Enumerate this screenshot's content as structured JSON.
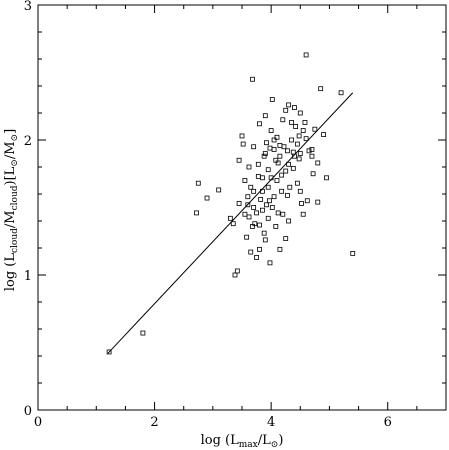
{
  "chart_data": {
    "type": "scatter",
    "title": "",
    "xlabel": {
      "main": "log (L",
      "sub": "max",
      "mid": "/L",
      "odot": "⊙",
      "end": ")"
    },
    "ylabel": {
      "p1": "log (L",
      "s1": "cloud",
      "p2": "/M",
      "s2": "cloud",
      "p3": ")[L",
      "o1": "⊙",
      "p4": "/M",
      "o2": "⊙",
      "p5": "]"
    },
    "xlim": [
      0,
      7
    ],
    "ylim": [
      0,
      3
    ],
    "xticks": [
      {
        "value": 0,
        "label": "0"
      },
      {
        "value": 2,
        "label": "2"
      },
      {
        "value": 4,
        "label": "4"
      },
      {
        "value": 6,
        "label": "6"
      }
    ],
    "yticks": [
      {
        "value": 0,
        "label": "0"
      },
      {
        "value": 1,
        "label": "1"
      },
      {
        "value": 2,
        "label": "2"
      },
      {
        "value": 3,
        "label": "3"
      }
    ],
    "fit_line": {
      "x": [
        1.2,
        5.4
      ],
      "y": [
        0.42,
        2.35
      ]
    },
    "points": [
      [
        1.22,
        0.43
      ],
      [
        1.8,
        0.57
      ],
      [
        2.75,
        1.68
      ],
      [
        2.72,
        1.46
      ],
      [
        2.9,
        1.57
      ],
      [
        3.1,
        1.63
      ],
      [
        3.3,
        1.42
      ],
      [
        3.35,
        1.38
      ],
      [
        3.45,
        1.85
      ],
      [
        3.5,
        2.03
      ],
      [
        3.52,
        1.97
      ],
      [
        3.55,
        1.45
      ],
      [
        3.6,
        1.52
      ],
      [
        3.62,
        1.43
      ],
      [
        3.65,
        1.17
      ],
      [
        3.68,
        2.45
      ],
      [
        3.7,
        1.62
      ],
      [
        3.72,
        1.38
      ],
      [
        3.75,
        1.46
      ],
      [
        3.78,
        1.82
      ],
      [
        3.8,
        1.37
      ],
      [
        3.82,
        1.56
      ],
      [
        3.85,
        1.62
      ],
      [
        3.88,
        1.31
      ],
      [
        3.9,
        1.9
      ],
      [
        3.92,
        1.52
      ],
      [
        3.95,
        1.78
      ],
      [
        3.97,
        1.55
      ],
      [
        4.0,
        1.72
      ],
      [
        4.02,
        1.5
      ],
      [
        4.05,
        1.93
      ],
      [
        4.08,
        1.36
      ],
      [
        4.1,
        1.7
      ],
      [
        4.12,
        1.83
      ],
      [
        4.15,
        1.88
      ],
      [
        4.18,
        1.62
      ],
      [
        4.2,
        1.45
      ],
      [
        4.22,
        1.95
      ],
      [
        4.25,
        1.77
      ],
      [
        4.28,
        1.59
      ],
      [
        4.3,
        1.82
      ],
      [
        4.32,
        1.65
      ],
      [
        4.35,
        2.0
      ],
      [
        4.38,
        1.91
      ],
      [
        4.4,
        1.88
      ],
      [
        4.42,
        2.1
      ],
      [
        4.45,
        1.97
      ],
      [
        4.48,
        2.03
      ],
      [
        4.5,
        1.9
      ],
      [
        4.52,
        1.53
      ],
      [
        4.55,
        1.45
      ],
      [
        4.6,
        2.63
      ],
      [
        4.62,
        1.55
      ],
      [
        4.65,
        1.92
      ],
      [
        4.7,
        1.88
      ],
      [
        4.75,
        2.08
      ],
      [
        4.8,
        1.54
      ],
      [
        4.85,
        2.38
      ],
      [
        4.9,
        2.04
      ],
      [
        4.95,
        1.72
      ],
      [
        5.2,
        2.35
      ],
      [
        5.4,
        1.16
      ],
      [
        3.38,
        1.0
      ],
      [
        3.42,
        1.03
      ],
      [
        3.58,
        1.28
      ],
      [
        3.68,
        1.36
      ],
      [
        3.75,
        1.13
      ],
      [
        3.8,
        1.19
      ],
      [
        3.9,
        1.26
      ],
      [
        3.98,
        1.09
      ],
      [
        3.45,
        1.53
      ],
      [
        3.6,
        1.58
      ],
      [
        3.7,
        1.95
      ],
      [
        3.85,
        1.72
      ],
      [
        3.95,
        1.65
      ],
      [
        4.05,
        1.58
      ],
      [
        4.1,
        2.02
      ],
      [
        4.15,
        1.96
      ],
      [
        4.2,
        2.15
      ],
      [
        4.25,
        2.22
      ],
      [
        4.3,
        2.26
      ],
      [
        4.35,
        2.13
      ],
      [
        4.4,
        2.24
      ],
      [
        4.5,
        2.2
      ],
      [
        4.6,
        2.01
      ],
      [
        4.7,
        1.93
      ],
      [
        3.8,
        2.12
      ],
      [
        3.9,
        2.18
      ],
      [
        4.0,
        2.07
      ],
      [
        4.05,
        2.0
      ],
      [
        3.95,
        1.42
      ],
      [
        3.85,
        1.48
      ],
      [
        3.65,
        1.65
      ],
      [
        3.55,
        1.7
      ],
      [
        4.3,
        1.4
      ],
      [
        4.25,
        1.27
      ],
      [
        4.15,
        1.19
      ],
      [
        4.12,
        1.46
      ],
      [
        4.5,
        1.62
      ],
      [
        4.45,
        1.68
      ],
      [
        3.7,
        1.5
      ],
      [
        3.78,
        1.73
      ],
      [
        3.88,
        1.88
      ],
      [
        4.08,
        1.85
      ],
      [
        4.18,
        1.74
      ],
      [
        4.28,
        1.92
      ],
      [
        4.38,
        1.79
      ],
      [
        4.48,
        1.86
      ],
      [
        4.55,
        2.07
      ],
      [
        4.58,
        2.13
      ],
      [
        3.62,
        1.8
      ],
      [
        4.72,
        1.75
      ],
      [
        4.8,
        1.83
      ],
      [
        3.92,
        1.98
      ],
      [
        4.02,
        2.3
      ],
      [
        3.98,
        1.94
      ]
    ]
  }
}
